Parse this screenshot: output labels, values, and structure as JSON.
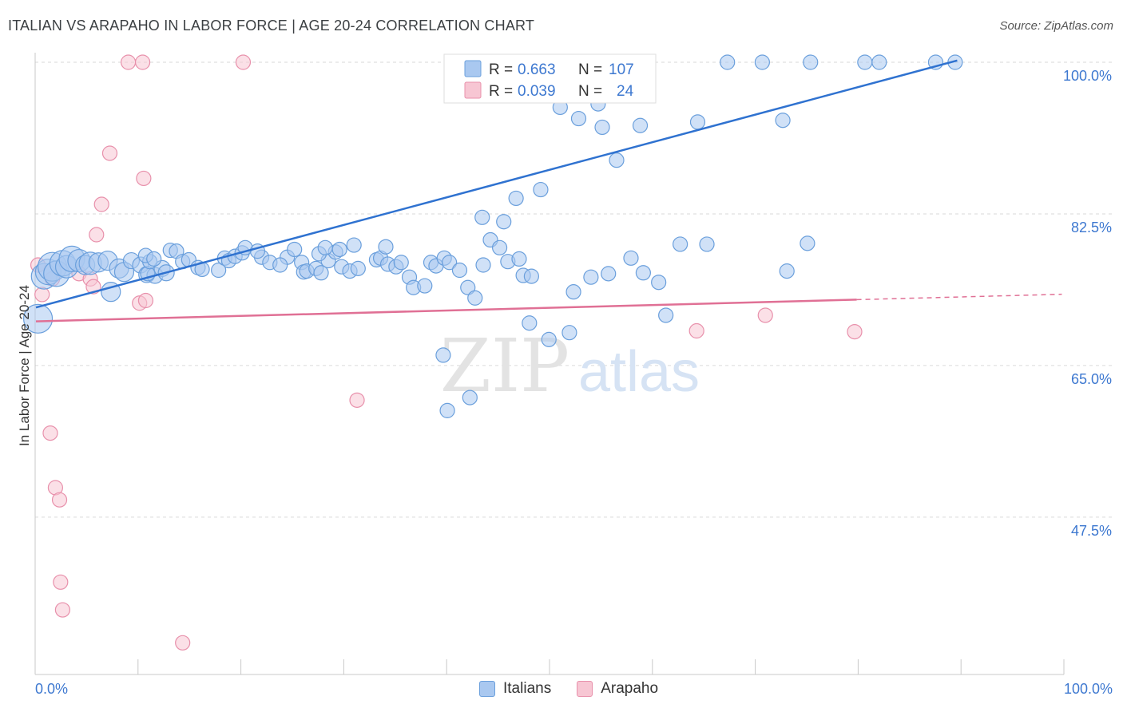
{
  "title": "ITALIAN VS ARAPAHO IN LABOR FORCE | AGE 20-24 CORRELATION CHART",
  "source": "Source: ZipAtlas.com",
  "watermark": {
    "zip": "ZIP",
    "atlas": "atlas"
  },
  "colors": {
    "italians_fill": "#a9c8f0",
    "italians_stroke": "#6a9fdc",
    "italians_line": "#2f72d0",
    "arapaho_fill": "#f7c6d3",
    "arapaho_stroke": "#e890ab",
    "arapaho_line": "#e07095",
    "tick_label": "#3d78d0",
    "grid": "#d9d9d9"
  },
  "legend": {
    "rows": [
      {
        "r_label": "R = ",
        "r_value": "0.663",
        "n_label": "N = ",
        "n_value": "107"
      },
      {
        "r_label": "R = ",
        "r_value": "0.039",
        "n_label": "N = ",
        "n_value": "24"
      }
    ],
    "bottom": [
      "Italians",
      "Arapaho"
    ]
  },
  "chart_data": {
    "type": "scatter",
    "title": "ITALIAN VS ARAPAHO IN LABOR FORCE | AGE 20-24 CORRELATION CHART",
    "xlabel": "",
    "ylabel": "In Labor Force | Age 20-24",
    "xlim": [
      0,
      100
    ],
    "ylim": [
      31,
      101.8
    ],
    "x_tick_labels": [
      "0.0%",
      "100.0%"
    ],
    "y_ticks": [
      47.5,
      65.0,
      82.5,
      100.0
    ],
    "y_tick_labels": [
      "47.5%",
      "65.0%",
      "82.5%",
      "100.0%"
    ],
    "series": [
      {
        "name": "Italians",
        "R": 0.663,
        "N": 107,
        "trend": {
          "x": [
            0,
            89.8
          ],
          "y": [
            71.7,
            100.2
          ]
        },
        "points": [
          [
            0.2,
            70.4,
            18
          ],
          [
            0.8,
            75.3,
            16
          ],
          [
            1.2,
            75.8,
            16
          ],
          [
            1.6,
            76.4,
            18
          ],
          [
            2.0,
            75.6,
            16
          ],
          [
            2.6,
            76.8,
            16
          ],
          [
            3.0,
            76.4,
            14
          ],
          [
            3.5,
            77.3,
            16
          ],
          [
            4.2,
            77.1,
            14
          ],
          [
            4.8,
            76.6,
            12
          ],
          [
            5.3,
            76.8,
            14
          ],
          [
            6.1,
            76.9,
            12
          ],
          [
            7.0,
            77.1,
            12
          ],
          [
            7.3,
            73.5,
            12
          ],
          [
            8.1,
            76.2,
            12
          ],
          [
            8.6,
            75.8,
            12
          ],
          [
            9.3,
            77.1,
            10
          ],
          [
            10.2,
            76.6,
            10
          ],
          [
            10.8,
            75.5,
            10
          ],
          [
            11.6,
            75.4,
            10
          ],
          [
            12.3,
            76.2,
            10
          ],
          [
            12.7,
            75.7,
            10
          ],
          [
            10.9,
            75.6,
            9
          ],
          [
            11.1,
            77.0,
            9
          ],
          [
            10.7,
            77.7,
            9
          ],
          [
            11.5,
            77.3,
            9
          ],
          [
            13.1,
            78.3,
            9
          ],
          [
            13.7,
            78.2,
            9
          ],
          [
            14.3,
            77.0,
            9
          ],
          [
            14.9,
            77.2,
            9
          ],
          [
            15.8,
            76.3,
            9
          ],
          [
            16.2,
            76.1,
            9
          ],
          [
            17.8,
            76.0,
            9
          ],
          [
            18.4,
            77.4,
            9
          ],
          [
            18.8,
            77.1,
            9
          ],
          [
            19.4,
            77.6,
            9
          ],
          [
            20.1,
            78.0,
            9
          ],
          [
            22.0,
            77.5,
            9
          ],
          [
            22.8,
            76.9,
            9
          ],
          [
            24.5,
            77.5,
            9
          ],
          [
            25.9,
            76.9,
            9
          ],
          [
            26.1,
            75.8,
            9
          ],
          [
            26.4,
            75.9,
            9
          ],
          [
            27.3,
            76.2,
            9
          ],
          [
            27.8,
            75.7,
            9
          ],
          [
            28.5,
            77.1,
            9
          ],
          [
            29.2,
            78.1,
            9
          ],
          [
            29.8,
            76.4,
            9
          ],
          [
            30.6,
            75.9,
            9
          ],
          [
            31.4,
            76.2,
            9
          ],
          [
            33.2,
            77.2,
            9
          ],
          [
            33.6,
            77.4,
            9
          ],
          [
            34.3,
            76.7,
            9
          ],
          [
            35.1,
            76.4,
            9
          ],
          [
            36.4,
            75.2,
            9
          ],
          [
            20.4,
            78.6,
            9
          ],
          [
            21.6,
            78.2,
            9
          ],
          [
            23.8,
            76.6,
            9
          ],
          [
            25.2,
            78.4,
            9
          ],
          [
            27.6,
            77.9,
            9
          ],
          [
            28.2,
            78.6,
            9
          ],
          [
            29.6,
            78.4,
            9
          ],
          [
            31.0,
            78.9,
            9
          ],
          [
            34.1,
            78.7,
            9
          ],
          [
            35.6,
            76.9,
            9
          ],
          [
            36.8,
            74.0,
            9
          ],
          [
            37.9,
            74.2,
            9
          ],
          [
            38.5,
            76.9,
            9
          ],
          [
            39.0,
            76.5,
            9
          ],
          [
            39.8,
            77.4,
            9
          ],
          [
            40.3,
            76.9,
            9
          ],
          [
            42.1,
            74.0,
            9
          ],
          [
            42.8,
            72.8,
            9
          ],
          [
            43.6,
            76.6,
            9
          ],
          [
            44.3,
            79.5,
            9
          ],
          [
            45.2,
            78.6,
            9
          ],
          [
            46.0,
            77.0,
            9
          ],
          [
            47.1,
            77.3,
            9
          ],
          [
            47.5,
            75.4,
            9
          ],
          [
            48.3,
            75.3,
            9
          ],
          [
            52.4,
            73.5,
            9
          ],
          [
            54.1,
            75.2,
            9
          ],
          [
            55.8,
            75.6,
            9
          ],
          [
            58.0,
            77.4,
            9
          ],
          [
            59.2,
            75.7,
            9
          ],
          [
            60.7,
            74.6,
            9
          ],
          [
            61.4,
            70.8,
            9
          ],
          [
            41.3,
            76.0,
            9
          ],
          [
            43.5,
            82.1,
            9
          ],
          [
            45.6,
            81.6,
            9
          ],
          [
            46.8,
            84.3,
            9
          ],
          [
            49.2,
            85.3,
            9
          ],
          [
            50.0,
            68.0,
            9
          ],
          [
            51.1,
            94.8,
            9
          ],
          [
            52.9,
            93.5,
            9
          ],
          [
            56.6,
            88.7,
            9
          ],
          [
            55.2,
            92.5,
            9
          ],
          [
            54.8,
            95.2,
            9
          ],
          [
            58.9,
            92.7,
            9
          ],
          [
            62.8,
            79.0,
            9
          ],
          [
            65.4,
            79.0,
            9
          ],
          [
            64.5,
            93.1,
            9
          ],
          [
            73.2,
            75.9,
            9
          ],
          [
            72.8,
            93.3,
            9
          ],
          [
            75.2,
            79.1,
            9
          ],
          [
            39.7,
            66.2,
            9
          ],
          [
            40.1,
            59.8,
            9
          ],
          [
            42.3,
            61.3,
            9
          ],
          [
            48.1,
            69.9,
            9
          ],
          [
            52.0,
            68.8,
            9
          ],
          [
            67.4,
            100.0,
            9
          ],
          [
            70.8,
            100.0,
            9
          ],
          [
            75.5,
            100.0,
            9
          ],
          [
            80.8,
            100.0,
            9
          ],
          [
            82.2,
            100.0,
            9
          ],
          [
            87.7,
            100.0,
            9
          ],
          [
            89.6,
            100.0,
            9
          ]
        ]
      },
      {
        "name": "Arapaho",
        "R": 0.039,
        "N": 24,
        "trend": {
          "x": [
            0,
            80.0
          ],
          "y": [
            70.1,
            72.6
          ]
        },
        "points": [
          [
            0.2,
            76.6,
            9
          ],
          [
            0.6,
            73.2,
            9
          ],
          [
            1.6,
            75.0,
            9
          ],
          [
            4.2,
            75.6,
            9
          ],
          [
            5.3,
            75.0,
            9
          ],
          [
            5.6,
            74.1,
            9
          ],
          [
            5.9,
            80.1,
            9
          ],
          [
            6.4,
            83.6,
            9
          ],
          [
            7.2,
            89.5,
            9
          ],
          [
            9.0,
            100.0,
            9
          ],
          [
            10.4,
            100.0,
            9
          ],
          [
            10.1,
            72.2,
            9
          ],
          [
            10.5,
            86.6,
            9
          ],
          [
            10.7,
            72.5,
            9
          ],
          [
            1.4,
            57.2,
            9
          ],
          [
            1.9,
            50.9,
            9
          ],
          [
            2.3,
            49.5,
            9
          ],
          [
            2.4,
            40.0,
            9
          ],
          [
            2.6,
            36.8,
            9
          ],
          [
            14.3,
            33.0,
            9
          ],
          [
            20.2,
            100.0,
            9
          ],
          [
            31.3,
            61.0,
            9
          ],
          [
            64.4,
            69.0,
            9
          ],
          [
            71.1,
            70.8,
            9
          ],
          [
            79.8,
            68.9,
            9
          ]
        ]
      }
    ]
  }
}
